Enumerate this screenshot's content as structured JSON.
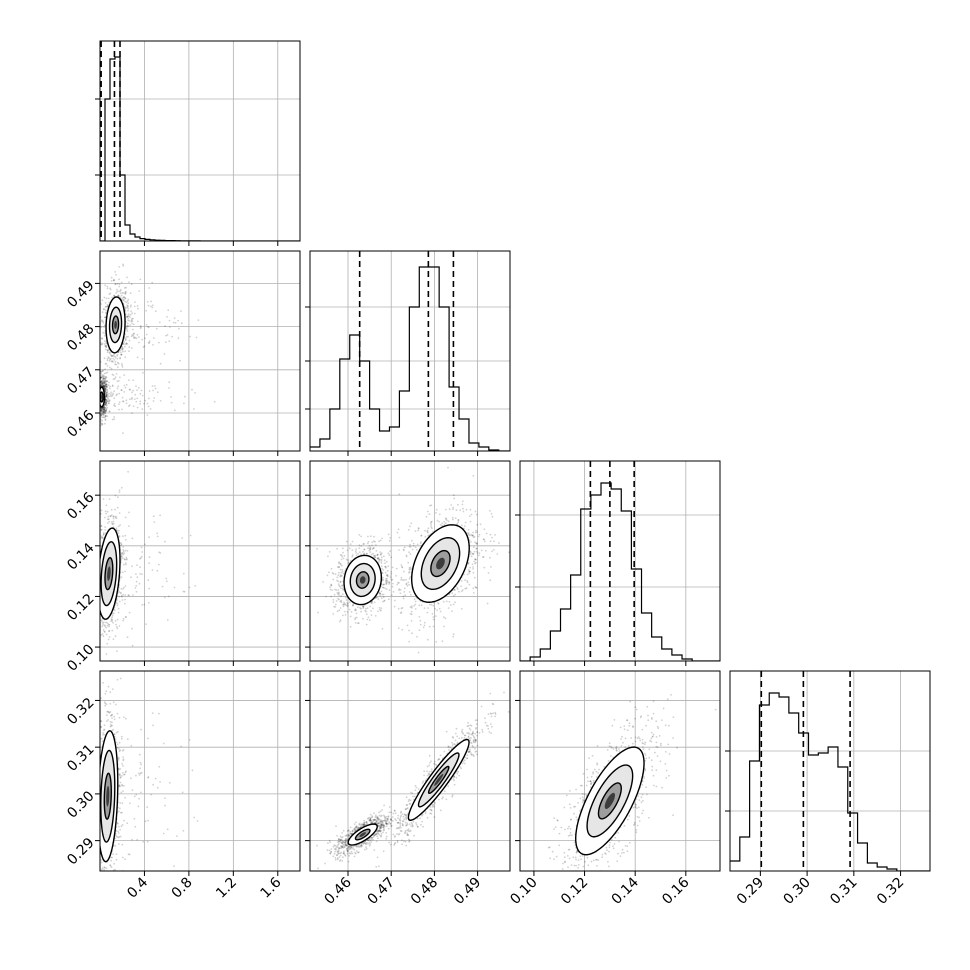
{
  "chart_data": {
    "type": "corner",
    "params": [
      {
        "range": [
          0.0,
          1.8
        ],
        "ticks": [
          0.4,
          0.8,
          1.2,
          1.6
        ],
        "tick_labels": [
          "0.4",
          "0.8",
          "1.2",
          "1.6"
        ],
        "label_xaxis": true,
        "label_yaxis": false
      },
      {
        "range": [
          0.4512,
          0.4975
        ],
        "ticks": [
          0.46,
          0.47,
          0.48,
          0.49
        ],
        "tick_labels": [
          "0.46",
          "0.47",
          "0.48",
          "0.49"
        ],
        "label_xaxis": true,
        "label_yaxis": true
      },
      {
        "range": [
          0.0945,
          0.1735
        ],
        "ticks": [
          0.1,
          0.12,
          0.14,
          0.16
        ],
        "tick_labels": [
          "0.10",
          "0.12",
          "0.14",
          "0.16"
        ],
        "label_xaxis": true,
        "label_yaxis": true
      },
      {
        "range": [
          0.2835,
          0.3263
        ],
        "ticks": [
          0.29,
          0.3,
          0.31,
          0.32
        ],
        "tick_labels": [
          "0.29",
          "0.30",
          "0.31",
          "0.32"
        ],
        "label_xaxis": true,
        "label_yaxis": true
      }
    ],
    "histograms": [
      {
        "param": 0,
        "edges": [
          0.0,
          0.045,
          0.09,
          0.135,
          0.18,
          0.225,
          0.27,
          0.315,
          0.36,
          0.405,
          0.45,
          0.495,
          0.54,
          0.585,
          0.63,
          0.675,
          0.72,
          0.765,
          0.81,
          0.855,
          0.9,
          1.8
        ],
        "counts": [
          0.0,
          0.71,
          0.91,
          0.92,
          0.33,
          0.08,
          0.035,
          0.02,
          0.012,
          0.008,
          0.006,
          0.004,
          0.003,
          0.002,
          0.002,
          0.0015,
          0.001,
          0.001,
          0.0008,
          0.0005,
          0.0
        ],
        "ymax": 1.0,
        "ticks": [
          0.33,
          0.71
        ],
        "quantiles": [
          0.01,
          0.13,
          0.18
        ]
      },
      {
        "param": 1,
        "edges": [
          0.4512,
          0.4535,
          0.4558,
          0.4581,
          0.4604,
          0.4627,
          0.465,
          0.4673,
          0.4696,
          0.4719,
          0.4742,
          0.4765,
          0.4788,
          0.4811,
          0.4834,
          0.4857,
          0.488,
          0.4903,
          0.4926,
          0.4949,
          0.4975
        ],
        "counts": [
          0.02,
          0.06,
          0.21,
          0.46,
          0.58,
          0.45,
          0.21,
          0.1,
          0.12,
          0.3,
          0.72,
          0.92,
          0.92,
          0.72,
          0.32,
          0.16,
          0.04,
          0.02,
          0.005,
          0.0
        ],
        "ymax": 1.0,
        "ticks": [
          0.21,
          0.45,
          0.72
        ],
        "quantiles": [
          0.4627,
          0.4786,
          0.4844
        ]
      },
      {
        "param": 2,
        "edges": [
          0.0945,
          0.0985,
          0.1025,
          0.1065,
          0.1105,
          0.1145,
          0.1185,
          0.1225,
          0.1265,
          0.1305,
          0.1345,
          0.1385,
          0.1425,
          0.1465,
          0.1505,
          0.1545,
          0.1585,
          0.1625,
          0.1665,
          0.1705,
          0.1735
        ],
        "counts": [
          0.0,
          0.02,
          0.06,
          0.15,
          0.26,
          0.43,
          0.76,
          0.83,
          0.89,
          0.86,
          0.75,
          0.46,
          0.24,
          0.12,
          0.06,
          0.03,
          0.01,
          0.0,
          0.0,
          0.0
        ],
        "ymax": 1.0,
        "ticks": [
          0.37,
          0.73
        ],
        "quantiles": [
          0.1223,
          0.13,
          0.1396
        ]
      },
      {
        "param": 3,
        "edges": [
          0.2835,
          0.2856,
          0.2877,
          0.2898,
          0.2919,
          0.294,
          0.2961,
          0.2982,
          0.3003,
          0.3024,
          0.3045,
          0.3066,
          0.3087,
          0.3108,
          0.3129,
          0.315,
          0.3171,
          0.3192,
          0.3213,
          0.3234,
          0.3263
        ],
        "counts": [
          0.05,
          0.17,
          0.55,
          0.83,
          0.89,
          0.87,
          0.79,
          0.69,
          0.58,
          0.59,
          0.62,
          0.52,
          0.29,
          0.14,
          0.04,
          0.02,
          0.01,
          0.0,
          0.0,
          0.0
        ],
        "ymax": 1.0,
        "ticks": [
          0.3,
          0.6
        ],
        "quantiles": [
          0.2902,
          0.2992,
          0.3092
        ]
      }
    ],
    "pairs": [
      {
        "x": 0,
        "y": 1,
        "modes": [
          {
            "cx": 0.015,
            "cy": 0.4637,
            "sx": 0.02,
            "sy": 0.0019,
            "rho": 0.0
          },
          {
            "cx": 0.14,
            "cy": 0.4804,
            "sx": 0.045,
            "sy": 0.0034,
            "rho": 0.1
          }
        ],
        "contours": [
          {
            "mode": 1,
            "cx": 0.14,
            "cy": 0.4804,
            "sx": 0.045,
            "sy": 0.0034,
            "rho": 0.1,
            "levels": [
              0.6,
              1.2,
              1.9
            ]
          },
          {
            "mode": 0,
            "cx": 0.015,
            "cy": 0.4637,
            "sx": 0.02,
            "sy": 0.0019,
            "rho": 0.0,
            "levels": [
              0.6,
              1.2
            ]
          }
        ]
      },
      {
        "x": 0,
        "y": 2,
        "contours": [
          {
            "mode": 0,
            "cx": 0.08,
            "cy": 0.129,
            "sx": 0.05,
            "sy": 0.009,
            "rho": 0.3,
            "levels": [
              0.7,
              1.4,
              2.0
            ]
          }
        ]
      },
      {
        "x": 1,
        "y": 2,
        "contours": [
          {
            "mode": 0,
            "cx": 0.4634,
            "cy": 0.1265,
            "sx": 0.0024,
            "sy": 0.0054,
            "rho": 0.1,
            "levels": [
              0.6,
              1.2,
              1.8
            ]
          },
          {
            "mode": 1,
            "cx": 0.4814,
            "cy": 0.133,
            "sx": 0.0037,
            "sy": 0.0085,
            "rho": 0.4,
            "levels": [
              0.6,
              1.2,
              1.8
            ]
          }
        ]
      },
      {
        "x": 0,
        "y": 3,
        "contours": [
          {
            "mode": 0,
            "cx": 0.07,
            "cy": 0.2995,
            "sx": 0.045,
            "sy": 0.007,
            "rho": 0.2,
            "levels": [
              0.7,
              1.4,
              2.0
            ]
          }
        ]
      },
      {
        "x": 1,
        "y": 3,
        "contours": [
          {
            "mode": 0,
            "cx": 0.4634,
            "cy": 0.2913,
            "sx": 0.0024,
            "sy": 0.0016,
            "rho": 0.75,
            "levels": [
              0.7,
              1.4
            ]
          },
          {
            "mode": 1,
            "cx": 0.481,
            "cy": 0.303,
            "sx": 0.0039,
            "sy": 0.0048,
            "rho": 0.93,
            "levels": [
              0.6,
              1.2,
              1.8
            ]
          }
        ]
      },
      {
        "x": 2,
        "y": 3,
        "contours": [
          {
            "mode": 0,
            "cx": 0.13,
            "cy": 0.2985,
            "sx": 0.0075,
            "sy": 0.0064,
            "rho": 0.7,
            "levels": [
              0.6,
              1.2,
              1.8
            ]
          }
        ]
      }
    ],
    "grid": true,
    "xlabel": "",
    "ylabel": "",
    "title": ""
  }
}
